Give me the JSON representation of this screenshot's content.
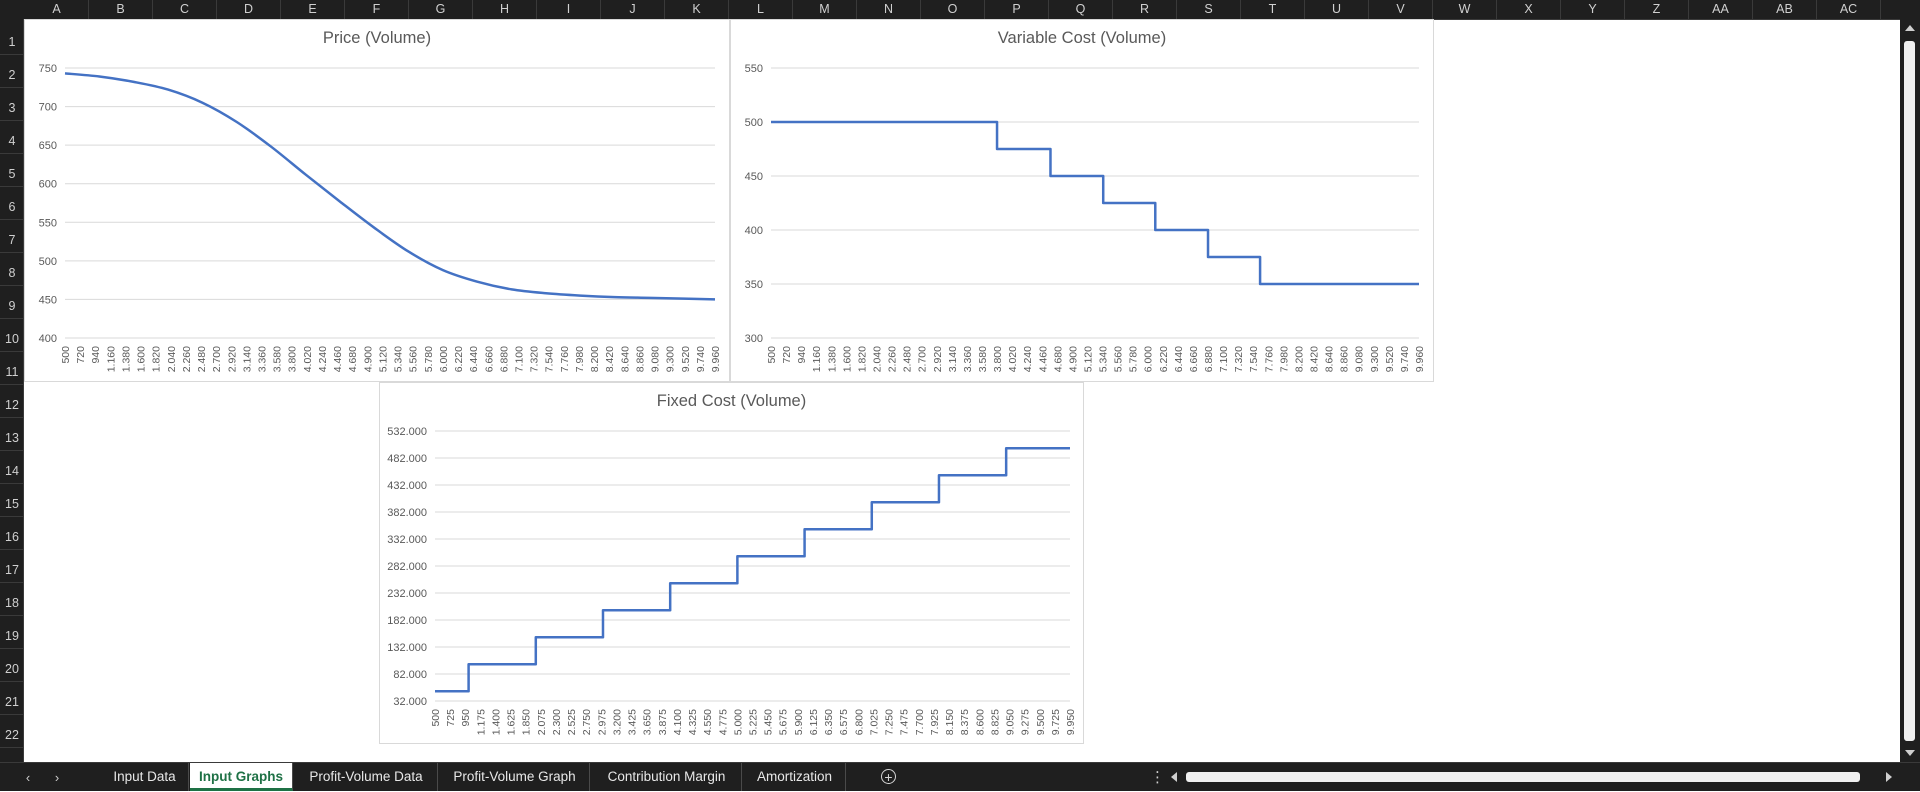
{
  "columns": [
    "A",
    "B",
    "C",
    "D",
    "E",
    "F",
    "G",
    "H",
    "I",
    "J",
    "K",
    "L",
    "M",
    "N",
    "O",
    "P",
    "Q",
    "R",
    "S",
    "T",
    "U",
    "V",
    "W",
    "X",
    "Y",
    "Z",
    "AA",
    "AB",
    "AC"
  ],
  "rows": [
    "1",
    "2",
    "3",
    "4",
    "5",
    "6",
    "7",
    "8",
    "9",
    "10",
    "11",
    "12",
    "13",
    "14",
    "15",
    "16",
    "17",
    "18",
    "19",
    "20",
    "21",
    "22"
  ],
  "sheet_tabs": [
    {
      "label": "Input Data",
      "active": false
    },
    {
      "label": "Input Graphs",
      "active": true
    },
    {
      "label": "Profit-Volume Data",
      "active": false
    },
    {
      "label": "Profit-Volume Graph",
      "active": false
    },
    {
      "label": "Contribution Margin",
      "active": false
    },
    {
      "label": "Amortization",
      "active": false
    }
  ],
  "icons": {
    "prev_sheet": "‹",
    "next_sheet": "›",
    "add_sheet": "+",
    "more_options": "⋮"
  },
  "colors": {
    "series": "#4472c4",
    "gridline": "#d9d9d9",
    "active_tab": "#1e7145"
  },
  "chart_data": [
    {
      "type": "line",
      "title": "Price (Volume)",
      "xlabel": "",
      "ylabel": "",
      "x_tick_labels": [
        "500",
        "720",
        "940",
        "1.160",
        "1.380",
        "1.600",
        "1.820",
        "2.040",
        "2.260",
        "2.480",
        "2.700",
        "2.920",
        "3.140",
        "3.360",
        "3.580",
        "3.800",
        "4.020",
        "4.240",
        "4.460",
        "4.680",
        "4.900",
        "5.120",
        "5.340",
        "5.560",
        "5.780",
        "6.000",
        "6.220",
        "6.440",
        "6.660",
        "6.880",
        "7.100",
        "7.320",
        "7.540",
        "7.760",
        "7.980",
        "8.200",
        "8.420",
        "8.640",
        "8.860",
        "9.080",
        "9.300",
        "9.520",
        "9.740",
        "9.960"
      ],
      "y_tick_labels": [
        "400",
        "450",
        "500",
        "550",
        "600",
        "650",
        "700",
        "750"
      ],
      "ylim": [
        400,
        750
      ],
      "xlim": [
        500,
        9960
      ],
      "grid": true,
      "series": [
        {
          "x": [
            500,
            1000,
            1500,
            2000,
            2500,
            3000,
            3500,
            4000,
            4500,
            5000,
            5500,
            6000,
            6500,
            7000,
            7500,
            8000,
            8500,
            9000,
            9500,
            9960
          ],
          "values": [
            743,
            739,
            732,
            722,
            705,
            680,
            648,
            612,
            577,
            543,
            512,
            488,
            473,
            463,
            458,
            455,
            453,
            452,
            451,
            450
          ]
        }
      ]
    },
    {
      "type": "line",
      "title": "Variable Cost (Volume)",
      "xlabel": "",
      "ylabel": "",
      "x_tick_labels": [
        "500",
        "720",
        "940",
        "1.160",
        "1.380",
        "1.600",
        "1.820",
        "2.040",
        "2.260",
        "2.480",
        "2.700",
        "2.920",
        "3.140",
        "3.360",
        "3.580",
        "3.800",
        "4.020",
        "4.240",
        "4.460",
        "4.680",
        "4.900",
        "5.120",
        "5.340",
        "5.560",
        "5.780",
        "6.000",
        "6.220",
        "6.440",
        "6.660",
        "6.880",
        "7.100",
        "7.320",
        "7.540",
        "7.760",
        "7.980",
        "8.200",
        "8.420",
        "8.640",
        "8.860",
        "9.080",
        "9.300",
        "9.520",
        "9.740",
        "9.960"
      ],
      "y_tick_labels": [
        "300",
        "350",
        "400",
        "450",
        "500",
        "550"
      ],
      "ylim": [
        300,
        550
      ],
      "xlim": [
        500,
        9960
      ],
      "grid": true,
      "series": [
        {
          "x": [
            500,
            3800,
            3800,
            4580,
            4580,
            5350,
            5350,
            6110,
            6110,
            6880,
            6880,
            7640,
            7640,
            9960
          ],
          "values": [
            500,
            500,
            475,
            475,
            450,
            450,
            425,
            425,
            400,
            400,
            375,
            375,
            350,
            350
          ]
        }
      ]
    },
    {
      "type": "line",
      "title": "Fixed Cost (Volume)",
      "xlabel": "",
      "ylabel": "",
      "x_tick_labels": [
        "500",
        "725",
        "950",
        "1.175",
        "1.400",
        "1.625",
        "1.850",
        "2.075",
        "2.300",
        "2.525",
        "2.750",
        "2.975",
        "3.200",
        "3.425",
        "3.650",
        "3.875",
        "4.100",
        "4.325",
        "4.550",
        "4.775",
        "5.000",
        "5.225",
        "5.450",
        "5.675",
        "5.900",
        "6.125",
        "6.350",
        "6.575",
        "6.800",
        "7.025",
        "7.250",
        "7.475",
        "7.700",
        "7.925",
        "8.150",
        "8.375",
        "8.600",
        "8.825",
        "9.050",
        "9.275",
        "9.500",
        "9.725",
        "9.950"
      ],
      "y_tick_labels": [
        "32.000",
        "82.000",
        "132.000",
        "182.000",
        "232.000",
        "282.000",
        "332.000",
        "382.000",
        "432.000",
        "482.000",
        "532.000"
      ],
      "ylim": [
        32000,
        532000
      ],
      "xlim": [
        500,
        9950
      ],
      "grid": true,
      "series": [
        {
          "x": [
            500,
            1000,
            1000,
            2000,
            2000,
            3000,
            3000,
            4000,
            4000,
            5000,
            5000,
            6000,
            6000,
            7000,
            7000,
            8000,
            8000,
            9000,
            9000,
            9950
          ],
          "values": [
            50000,
            50000,
            100000,
            100000,
            150000,
            150000,
            200000,
            200000,
            250000,
            250000,
            300000,
            300000,
            350000,
            350000,
            400000,
            400000,
            450000,
            450000,
            500000,
            500000
          ]
        }
      ]
    }
  ]
}
